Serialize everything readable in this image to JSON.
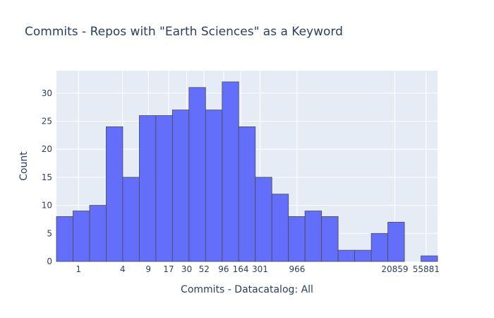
{
  "chart_data": {
    "type": "bar",
    "title": "Commits - Repos with \"Earth Sciences\" as a Keyword",
    "xlabel": "Commits - Datacatalog: All",
    "ylabel": "Count",
    "x_scale": "log",
    "ylim": [
      0,
      34
    ],
    "y_ticks": [
      0,
      5,
      10,
      15,
      20,
      25,
      30
    ],
    "x_tick_labels": [
      "1",
      "4",
      "9",
      "17",
      "30",
      "52",
      "96",
      "164",
      "301",
      "966",
      "20859",
      "55881"
    ],
    "bins": 23,
    "values": [
      8,
      9,
      10,
      24,
      15,
      26,
      26,
      27,
      31,
      27,
      32,
      24,
      15,
      12,
      8,
      9,
      8,
      2,
      2,
      5,
      7,
      0,
      1
    ],
    "bar_color": "#636efa",
    "bar_edge_color": "#4a4a4a",
    "plot_bg": "#e5ecf6",
    "grid": true
  }
}
